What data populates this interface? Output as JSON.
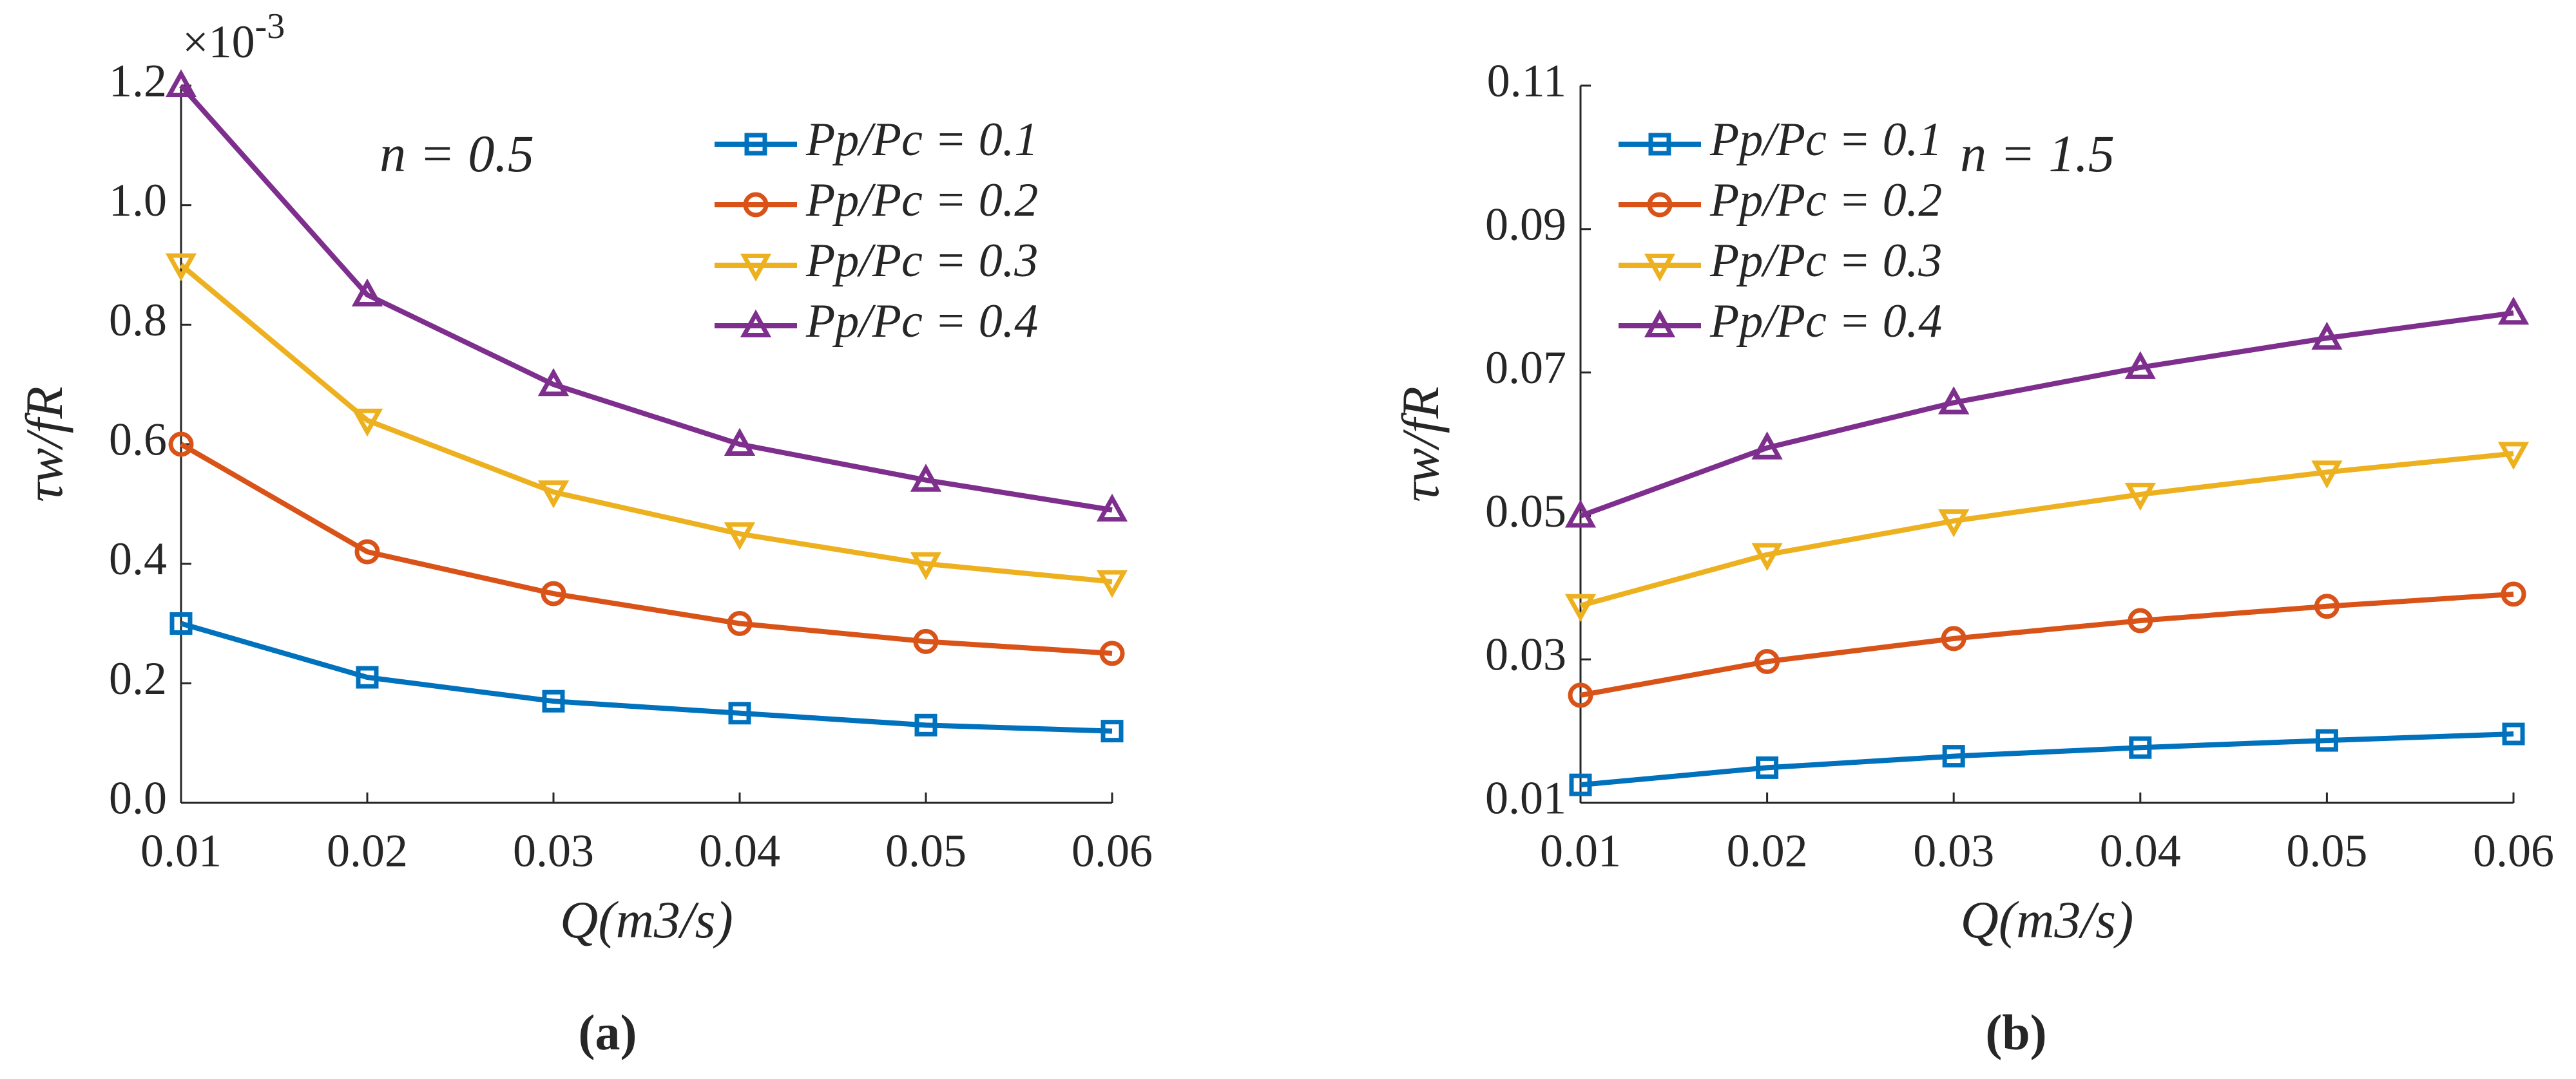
{
  "chart_data": [
    {
      "type": "line",
      "panel_label": "(a)",
      "annotation": "n = 0.5",
      "y_scale_base": "×10",
      "y_scale_exponent": "-3",
      "xlabel": "Q(m3/s)",
      "ylabel": "τw/fR",
      "x": [
        0.01,
        0.02,
        0.03,
        0.04,
        0.05,
        0.06
      ],
      "xlim": [
        0.01,
        0.06
      ],
      "xticks": [
        0.01,
        0.02,
        0.03,
        0.04,
        0.05,
        0.06
      ],
      "ylim": [
        0,
        1.2
      ],
      "yticks": [
        {
          "value": 0,
          "label": "0.0"
        },
        0.2,
        0.4,
        0.6,
        0.8,
        {
          "value": 1,
          "label": "1.0"
        },
        1.2
      ],
      "legend": "upper right",
      "series": [
        {
          "name": "Pp/Pc = 0.1",
          "color": "#0072bd",
          "marker": "square",
          "values": [
            0.3,
            0.21,
            0.17,
            0.15,
            0.13,
            0.12
          ]
        },
        {
          "name": "Pp/Pc = 0.2",
          "color": "#d95319",
          "marker": "circle",
          "values": [
            0.6,
            0.42,
            0.35,
            0.3,
            0.27,
            0.25
          ]
        },
        {
          "name": "Pp/Pc = 0.3",
          "color": "#edb120",
          "marker": "triangle-down",
          "values": [
            0.9,
            0.64,
            0.52,
            0.45,
            0.4,
            0.37
          ]
        },
        {
          "name": "Pp/Pc = 0.4",
          "color": "#7e2f8e",
          "marker": "triangle-up",
          "values": [
            1.2,
            0.85,
            0.7,
            0.6,
            0.54,
            0.49
          ]
        }
      ]
    },
    {
      "type": "line",
      "panel_label": "(b)",
      "annotation": "n = 1.5",
      "xlabel": "Q(m3/s)",
      "ylabel": "τw/fR",
      "x": [
        0.01,
        0.02,
        0.03,
        0.04,
        0.05,
        0.06
      ],
      "xlim": [
        0.01,
        0.06
      ],
      "xticks": [
        0.01,
        0.02,
        0.03,
        0.04,
        0.05,
        0.06
      ],
      "ylim": [
        0.01,
        0.11
      ],
      "yticks": [
        0.01,
        0.03,
        0.05,
        0.07,
        0.09,
        0.11
      ],
      "legend": "upper left",
      "series": [
        {
          "name": "Pp/Pc = 0.1",
          "color": "#0072bd",
          "marker": "square",
          "values": [
            0.0125,
            0.0149,
            0.0165,
            0.0177,
            0.0187,
            0.0196
          ]
        },
        {
          "name": "Pp/Pc = 0.2",
          "color": "#d95319",
          "marker": "circle",
          "values": [
            0.025,
            0.0297,
            0.0329,
            0.0354,
            0.0374,
            0.0391
          ]
        },
        {
          "name": "Pp/Pc = 0.3",
          "color": "#edb120",
          "marker": "triangle-down",
          "values": [
            0.0375,
            0.0446,
            0.0493,
            0.053,
            0.0561,
            0.0587
          ]
        },
        {
          "name": "Pp/Pc = 0.4",
          "color": "#7e2f8e",
          "marker": "triangle-up",
          "values": [
            0.05,
            0.0595,
            0.0658,
            0.0707,
            0.0748,
            0.0783
          ]
        }
      ]
    }
  ]
}
